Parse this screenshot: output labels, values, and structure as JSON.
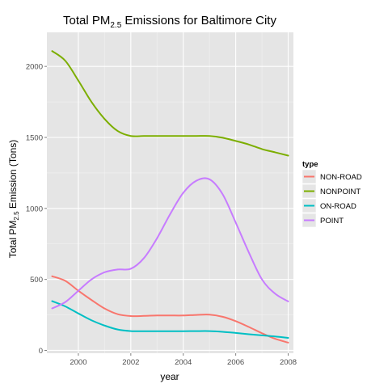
{
  "chart_data": {
    "type": "line",
    "title": {
      "prefix": "Total PM",
      "sub": "2.5",
      "suffix": " Emissions for Baltimore City"
    },
    "xlabel": "year",
    "ylabel": {
      "prefix": "Total PM",
      "sub": "2.5",
      "suffix": " Emission (Tons)"
    },
    "xlim": [
      1998.8,
      2008.2
    ],
    "ylim": [
      -20,
      2240
    ],
    "x_ticks": [
      2000,
      2002,
      2004,
      2006,
      2008
    ],
    "x_tick_labels": [
      "2000",
      "2002",
      "2004",
      "2006",
      "2008"
    ],
    "y_ticks": [
      0,
      500,
      1000,
      1500,
      2000
    ],
    "y_tick_labels": [
      "0",
      "500",
      "1000",
      "1500",
      "2000"
    ],
    "grid": true,
    "legend": {
      "title": "type",
      "position": "right"
    },
    "x": [
      1999,
      1999.5,
      2000,
      2000.5,
      2001,
      2001.5,
      2002,
      2002.5,
      2003,
      2003.5,
      2004,
      2004.5,
      2005,
      2005.5,
      2006,
      2006.5,
      2007,
      2007.5,
      2008
    ],
    "series": [
      {
        "name": "NON-ROAD",
        "color": "#F8766D",
        "values": [
          522,
          490,
          420,
          355,
          295,
          255,
          242,
          243,
          246,
          246,
          246,
          250,
          252,
          237,
          206,
          165,
          121,
          82,
          55
        ]
      },
      {
        "name": "NONPOINT",
        "color": "#7CAE00",
        "values": [
          2108,
          2040,
          1900,
          1750,
          1630,
          1545,
          1510,
          1510,
          1510,
          1510,
          1510,
          1510,
          1510,
          1498,
          1475,
          1450,
          1418,
          1395,
          1372
        ]
      },
      {
        "name": "ON-ROAD",
        "color": "#00BFC4",
        "values": [
          347,
          310,
          260,
          212,
          175,
          147,
          136,
          135,
          135,
          135,
          135,
          136,
          136,
          131,
          123,
          114,
          106,
          98,
          88
        ]
      },
      {
        "name": "POINT",
        "color": "#C77CFF",
        "values": [
          296,
          340,
          420,
          500,
          550,
          570,
          575,
          650,
          790,
          960,
          1110,
          1195,
          1205,
          1100,
          900,
          690,
          500,
          400,
          345
        ]
      }
    ]
  },
  "colors": {
    "panel": "#E5E5E5",
    "grid_major": "#FFFFFF",
    "grid_minor": "#F2F2F2",
    "legend_key_bg": "#E5E5E5"
  }
}
